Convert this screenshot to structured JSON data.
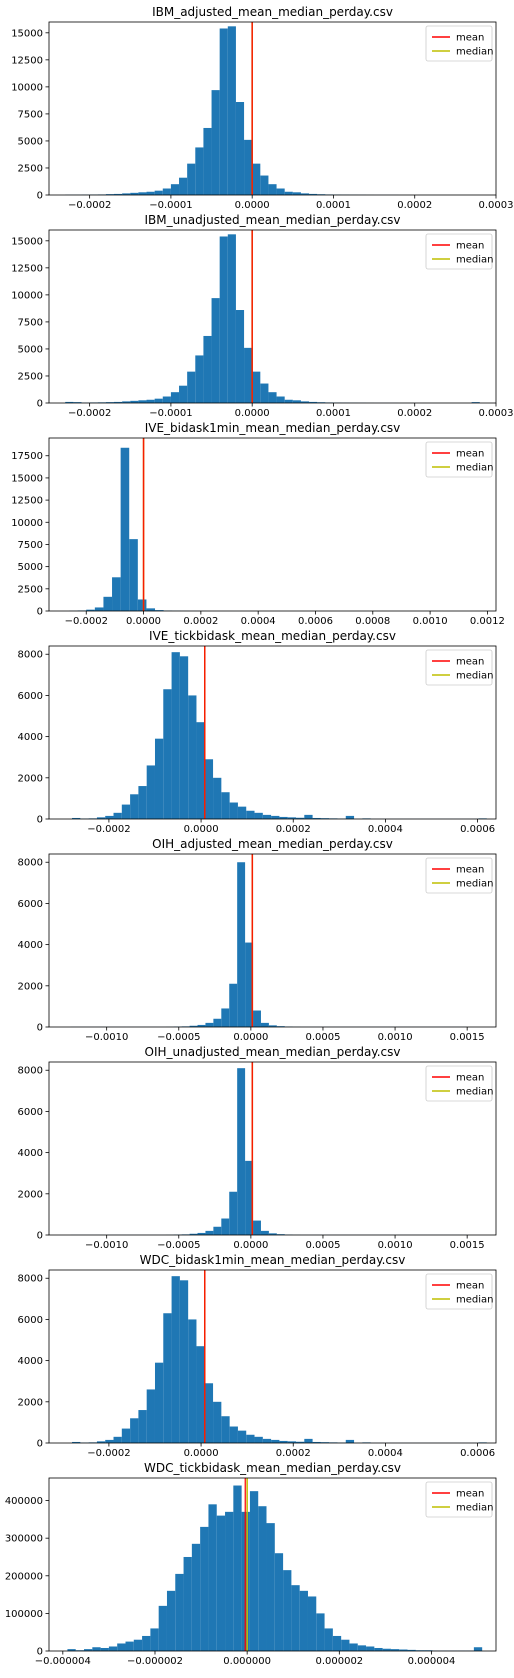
{
  "chart_data": [
    {
      "type": "bar",
      "title": "IBM_adjusted_mean_median_perday.csv",
      "xlim": [
        -0.00025,
        0.0003
      ],
      "ylim": [
        0,
        16000
      ],
      "xticks": [
        -0.0002,
        -0.0001,
        0.0,
        0.0001,
        0.0002,
        0.0003
      ],
      "xtick_labels": [
        "−0.0002",
        "−0.0001",
        "0.0000",
        "0.0001",
        "0.0002",
        "0.0003"
      ],
      "yticks": [
        0,
        2500,
        5000,
        7500,
        10000,
        12500,
        15000
      ],
      "ytick_labels": [
        "0",
        "2500",
        "5000",
        "7500",
        "10000",
        "12500",
        "15000"
      ],
      "bin_edges": [
        -0.00023,
        -0.00022,
        -0.00021,
        -0.0002,
        -0.00019,
        -0.00018,
        -0.00017,
        -0.00016,
        -0.00015,
        -0.00014,
        -0.00013,
        -0.00012,
        -0.00011,
        -0.0001,
        -9e-05,
        -8e-05,
        -7e-05,
        -6e-05,
        -5e-05,
        -4e-05,
        -3e-05,
        -2e-05,
        -1e-05,
        0.0,
        1e-05,
        2e-05,
        3e-05,
        4e-05,
        5e-05,
        6e-05,
        7e-05,
        8e-05,
        9e-05,
        0.0001,
        0.00011,
        0.00012,
        0.00013,
        0.00014,
        0.00015,
        0.00016,
        0.00017,
        0.00018,
        0.00019,
        0.0002,
        0.00021,
        0.00022,
        0.00023,
        0.00024,
        0.00025,
        0.00026,
        0.00027,
        0.00028
      ],
      "counts": [
        20,
        20,
        30,
        40,
        50,
        80,
        100,
        150,
        200,
        250,
        300,
        400,
        600,
        1000,
        1600,
        2900,
        4400,
        6200,
        9700,
        15400,
        15600,
        8600,
        5100,
        2900,
        1800,
        1000,
        600,
        300,
        250,
        150,
        100,
        70,
        50,
        40,
        30,
        25,
        20,
        15,
        10,
        10,
        10,
        5,
        5,
        5,
        5,
        5,
        5,
        5,
        5,
        5,
        5
      ],
      "mean": 0.0,
      "median": 0.0,
      "legend": [
        "mean",
        "median"
      ],
      "legend_placement": "upper right",
      "colors": {
        "bars": "#1f77b4",
        "mean": "#ff0000",
        "median": "#bfbf00"
      }
    },
    {
      "type": "bar",
      "title": "IBM_unadjusted_mean_median_perday.csv",
      "xlim": [
        -0.00025,
        0.0003
      ],
      "ylim": [
        0,
        16000
      ],
      "xticks": [
        -0.0002,
        -0.0001,
        0.0,
        0.0001,
        0.0002,
        0.0003
      ],
      "xtick_labels": [
        "−0.0002",
        "−0.0001",
        "0.0000",
        "0.0001",
        "0.0002",
        "0.0003"
      ],
      "yticks": [
        0,
        2500,
        5000,
        7500,
        10000,
        12500,
        15000
      ],
      "ytick_labels": [
        "0",
        "2500",
        "5000",
        "7500",
        "10000",
        "12500",
        "15000"
      ],
      "bin_edges": [
        -0.00023,
        -0.00022,
        -0.00021,
        -0.0002,
        -0.00019,
        -0.00018,
        -0.00017,
        -0.00016,
        -0.00015,
        -0.00014,
        -0.00013,
        -0.00012,
        -0.00011,
        -0.0001,
        -9e-05,
        -8e-05,
        -7e-05,
        -6e-05,
        -5e-05,
        -4e-05,
        -3e-05,
        -2e-05,
        -1e-05,
        0.0,
        1e-05,
        2e-05,
        3e-05,
        4e-05,
        5e-05,
        6e-05,
        7e-05,
        8e-05,
        9e-05,
        0.0001,
        0.00011,
        0.00012,
        0.00013,
        0.00014,
        0.00015,
        0.00016,
        0.00017,
        0.00018,
        0.00019,
        0.0002,
        0.00021,
        0.00022,
        0.00023,
        0.00024,
        0.00025,
        0.00026,
        0.00027,
        0.00028
      ],
      "counts": [
        100,
        80,
        30,
        50,
        60,
        80,
        100,
        150,
        200,
        250,
        300,
        400,
        600,
        1000,
        1600,
        2900,
        4400,
        6200,
        9700,
        15400,
        15600,
        8600,
        5100,
        2900,
        1800,
        1000,
        600,
        300,
        250,
        150,
        100,
        70,
        50,
        40,
        30,
        25,
        20,
        15,
        10,
        10,
        10,
        5,
        5,
        5,
        5,
        5,
        5,
        5,
        5,
        5,
        80
      ],
      "mean": 0.0,
      "median": 0.0,
      "legend": [
        "mean",
        "median"
      ],
      "legend_placement": "upper right",
      "colors": {
        "bars": "#1f77b4",
        "mean": "#ff0000",
        "median": "#bfbf00"
      }
    },
    {
      "type": "bar",
      "title": "IVE_bidask1min_mean_median_perday.csv",
      "xlim": [
        -0.00033,
        0.00123
      ],
      "ylim": [
        0,
        19500
      ],
      "xticks": [
        -0.0002,
        0.0,
        0.0002,
        0.0004,
        0.0006,
        0.0008,
        0.001,
        0.0012
      ],
      "xtick_labels": [
        "−0.0002",
        "0.0000",
        "0.0002",
        "0.0004",
        "0.0006",
        "0.0008",
        "0.0010",
        "0.0012"
      ],
      "yticks": [
        0,
        2500,
        5000,
        7500,
        10000,
        12500,
        15000,
        17500
      ],
      "ytick_labels": [
        "0",
        "2500",
        "5000",
        "7500",
        "10000",
        "12500",
        "15000",
        "17500"
      ],
      "bin_edges": [
        -0.00026,
        -0.00023,
        -0.0002,
        -0.00017,
        -0.00014,
        -0.00011,
        -8e-05,
        -5e-05,
        -2e-05,
        1e-05,
        4e-05,
        7e-05,
        0.0001,
        0.00013,
        0.00016,
        0.00019,
        0.00022,
        0.00025,
        0.00028,
        0.00031
      ],
      "counts": [
        20,
        60,
        150,
        400,
        1600,
        3800,
        18400,
        8100,
        1300,
        300,
        100,
        50,
        30,
        20,
        10,
        10,
        5,
        5,
        5
      ],
      "mean": 0.0,
      "median": 0.0,
      "legend": [
        "mean",
        "median"
      ],
      "legend_placement": "upper right",
      "colors": {
        "bars": "#1f77b4",
        "mean": "#ff0000",
        "median": "#bfbf00"
      }
    },
    {
      "type": "bar",
      "title": "IVE_tickbidask_mean_median_perday.csv",
      "xlim": [
        -0.00033,
        0.00064
      ],
      "ylim": [
        0,
        8400
      ],
      "xticks": [
        -0.0002,
        0.0,
        0.0002,
        0.0004,
        0.0006
      ],
      "xtick_labels": [
        "−0.0002",
        "0.0000",
        "0.0002",
        "0.0004",
        "0.0006"
      ],
      "yticks": [
        0,
        2000,
        4000,
        6000,
        8000
      ],
      "ytick_labels": [
        "0",
        "2000",
        "4000",
        "6000",
        "8000"
      ],
      "bin_edges": [
        -0.00028,
        -0.000262,
        -0.000244,
        -0.000226,
        -0.000208,
        -0.00019,
        -0.000172,
        -0.000154,
        -0.000136,
        -0.000118,
        -0.0001,
        -8.2e-05,
        -6.4e-05,
        -4.6e-05,
        -2.8e-05,
        -1e-05,
        8e-06,
        2.6e-05,
        4.4e-05,
        6.2e-05,
        8e-05,
        9.8e-05,
        0.000116,
        0.000134,
        0.000152,
        0.00017,
        0.000188,
        0.000206,
        0.000224,
        0.000242,
        0.00026,
        0.000278,
        0.000296,
        0.000314,
        0.000332,
        0.00035,
        0.000368,
        0.000386,
        0.000404,
        0.000422,
        0.00044,
        0.000458,
        0.000476,
        0.000494,
        0.000512,
        0.00053,
        0.000548,
        0.000566,
        0.000584,
        0.000602,
        0.00062
      ],
      "counts": [
        50,
        20,
        30,
        80,
        150,
        300,
        700,
        1200,
        1600,
        2600,
        3900,
        6300,
        8100,
        7900,
        6000,
        4700,
        2900,
        2000,
        1300,
        800,
        600,
        400,
        300,
        200,
        150,
        100,
        80,
        60,
        200,
        50,
        40,
        30,
        20,
        150,
        10,
        30,
        5,
        5,
        5,
        5,
        5,
        5,
        5,
        5,
        5,
        5,
        5,
        5,
        5,
        30
      ],
      "mean": 8e-06,
      "median": 8e-06,
      "legend": [
        "mean",
        "median"
      ],
      "legend_placement": "upper right",
      "colors": {
        "bars": "#1f77b4",
        "mean": "#ff0000",
        "median": "#bfbf00"
      }
    },
    {
      "type": "bar",
      "title": "OIH_adjusted_mean_median_perday.csv",
      "xlim": [
        -0.0014,
        0.0017
      ],
      "ylim": [
        0,
        8400
      ],
      "xticks": [
        -0.001,
        -0.0005,
        0.0,
        0.0005,
        0.001,
        0.0015
      ],
      "xtick_labels": [
        "−0.0010",
        "−0.0005",
        "0.0000",
        "0.0005",
        "0.0010",
        "0.0015"
      ],
      "yticks": [
        0,
        2000,
        4000,
        6000,
        8000
      ],
      "ytick_labels": [
        "0",
        "2000",
        "4000",
        "6000",
        "8000"
      ],
      "bin_edges": [
        -0.00125,
        -0.001195,
        -0.00114,
        -0.001085,
        -0.00103,
        -0.000975,
        -0.00092,
        -0.000865,
        -0.00081,
        -0.000755,
        -0.0007,
        -0.000645,
        -0.00059,
        -0.000535,
        -0.00048,
        -0.000425,
        -0.00037,
        -0.000315,
        -0.00026,
        -0.000205,
        -0.00015,
        -9.5e-05,
        -4e-05,
        1.5e-05,
        7e-05,
        0.000125,
        0.00018,
        0.000235,
        0.00029,
        0.000345,
        0.0004,
        0.000455,
        0.00051,
        0.000565,
        0.00062,
        0.000675,
        0.00073,
        0.000785,
        0.00084,
        0.000895,
        0.00095,
        0.001005,
        0.00106,
        0.001115,
        0.00117,
        0.001225,
        0.00128,
        0.001335,
        0.00139,
        0.001445,
        0.0015
      ],
      "counts": [
        5,
        5,
        5,
        5,
        5,
        5,
        5,
        5,
        5,
        5,
        5,
        5,
        10,
        20,
        30,
        60,
        100,
        200,
        400,
        900,
        2100,
        8000,
        4100,
        800,
        200,
        80,
        40,
        20,
        10,
        5,
        5,
        5,
        5,
        5,
        5,
        5,
        5,
        5,
        5,
        5,
        5,
        5,
        5,
        5,
        5,
        5,
        5,
        5,
        5,
        5
      ],
      "mean": 1e-05,
      "median": 1e-05,
      "legend": [
        "mean",
        "median"
      ],
      "legend_placement": "upper right",
      "colors": {
        "bars": "#1f77b4",
        "mean": "#ff0000",
        "median": "#bfbf00"
      }
    },
    {
      "type": "bar",
      "title": "OIH_unadjusted_mean_median_perday.csv",
      "xlim": [
        -0.0014,
        0.0017
      ],
      "ylim": [
        0,
        8400
      ],
      "xticks": [
        -0.001,
        -0.0005,
        0.0,
        0.0005,
        0.001,
        0.0015
      ],
      "xtick_labels": [
        "−0.0010",
        "−0.0005",
        "0.0000",
        "0.0005",
        "0.0010",
        "0.0015"
      ],
      "yticks": [
        0,
        2000,
        4000,
        6000,
        8000
      ],
      "ytick_labels": [
        "0",
        "2000",
        "4000",
        "6000",
        "8000"
      ],
      "bin_edges": [
        -0.00125,
        -0.001195,
        -0.00114,
        -0.001085,
        -0.00103,
        -0.000975,
        -0.00092,
        -0.000865,
        -0.00081,
        -0.000755,
        -0.0007,
        -0.000645,
        -0.00059,
        -0.000535,
        -0.00048,
        -0.000425,
        -0.00037,
        -0.000315,
        -0.00026,
        -0.000205,
        -0.00015,
        -9.5e-05,
        -4e-05,
        1.5e-05,
        7e-05,
        0.000125,
        0.00018,
        0.000235,
        0.00029,
        0.000345,
        0.0004,
        0.000455,
        0.00051,
        0.000565,
        0.00062,
        0.000675,
        0.00073,
        0.000785,
        0.00084,
        0.000895,
        0.00095,
        0.001005,
        0.00106,
        0.001115,
        0.00117,
        0.001225,
        0.00128,
        0.001335,
        0.00139,
        0.001445,
        0.0015
      ],
      "counts": [
        5,
        5,
        5,
        5,
        5,
        5,
        5,
        5,
        5,
        5,
        5,
        5,
        10,
        20,
        30,
        60,
        100,
        200,
        400,
        800,
        2100,
        8100,
        3600,
        700,
        200,
        80,
        40,
        20,
        10,
        5,
        5,
        5,
        5,
        5,
        5,
        5,
        5,
        5,
        5,
        5,
        5,
        5,
        5,
        5,
        5,
        5,
        5,
        5,
        5,
        5
      ],
      "mean": 1e-05,
      "median": 1e-05,
      "legend": [
        "mean",
        "median"
      ],
      "legend_placement": "upper right",
      "colors": {
        "bars": "#1f77b4",
        "mean": "#ff0000",
        "median": "#bfbf00"
      }
    },
    {
      "type": "bar",
      "title": "WDC_bidask1min_mean_median_perday.csv",
      "xlim": [
        -0.00033,
        0.00064
      ],
      "ylim": [
        0,
        8400
      ],
      "xticks": [
        -0.0002,
        0.0,
        0.0002,
        0.0004,
        0.0006
      ],
      "xtick_labels": [
        "−0.0002",
        "0.0000",
        "0.0002",
        "0.0004",
        "0.0006"
      ],
      "yticks": [
        0,
        2000,
        4000,
        6000,
        8000
      ],
      "ytick_labels": [
        "0",
        "2000",
        "4000",
        "6000",
        "8000"
      ],
      "bin_edges": [
        -0.00028,
        -0.000262,
        -0.000244,
        -0.000226,
        -0.000208,
        -0.00019,
        -0.000172,
        -0.000154,
        -0.000136,
        -0.000118,
        -0.0001,
        -8.2e-05,
        -6.4e-05,
        -4.6e-05,
        -2.8e-05,
        -1e-05,
        8e-06,
        2.6e-05,
        4.4e-05,
        6.2e-05,
        8e-05,
        9.8e-05,
        0.000116,
        0.000134,
        0.000152,
        0.00017,
        0.000188,
        0.000206,
        0.000224,
        0.000242,
        0.00026,
        0.000278,
        0.000296,
        0.000314,
        0.000332,
        0.00035,
        0.000368,
        0.000386,
        0.000404,
        0.000422,
        0.00044,
        0.000458,
        0.000476,
        0.000494,
        0.000512,
        0.00053,
        0.000548,
        0.000566,
        0.000584,
        0.000602,
        0.00062
      ],
      "counts": [
        50,
        20,
        30,
        80,
        150,
        300,
        700,
        1200,
        1600,
        2600,
        3900,
        6300,
        8100,
        7900,
        6000,
        4700,
        2900,
        2000,
        1300,
        800,
        600,
        400,
        300,
        200,
        150,
        100,
        80,
        60,
        200,
        50,
        40,
        30,
        20,
        150,
        10,
        30,
        5,
        5,
        5,
        5,
        5,
        5,
        5,
        5,
        5,
        5,
        5,
        5,
        5,
        30
      ],
      "mean": 8e-06,
      "median": 8e-06,
      "legend": [
        "mean",
        "median"
      ],
      "legend_placement": "upper right",
      "colors": {
        "bars": "#1f77b4",
        "mean": "#ff0000",
        "median": "#bfbf00"
      }
    },
    {
      "type": "bar",
      "title": "WDC_tickbidask_mean_median_perday.csv",
      "xlim": [
        -4.3e-06,
        5.4e-06
      ],
      "ylim": [
        0,
        460000
      ],
      "xticks": [
        -4e-06,
        -2e-06,
        0.0,
        2e-06,
        4e-06
      ],
      "xtick_labels": [
        "−0.000004",
        "−0.000002",
        "0.000000",
        "0.000002",
        "0.000004"
      ],
      "yticks": [
        0,
        100000,
        200000,
        300000,
        400000
      ],
      "ytick_labels": [
        "0",
        "100000",
        "200000",
        "300000",
        "400000"
      ],
      "bin_edges": [
        -3.9e-06,
        -3.72e-06,
        -3.54e-06,
        -3.36e-06,
        -3.18e-06,
        -3e-06,
        -2.82e-06,
        -2.64e-06,
        -2.46e-06,
        -2.28e-06,
        -2.1e-06,
        -1.92e-06,
        -1.74e-06,
        -1.56e-06,
        -1.38e-06,
        -1.2e-06,
        -1.02e-06,
        -8.4e-07,
        -6.6e-07,
        -4.8e-07,
        -3e-07,
        -1.2e-07,
        6e-08,
        2.4e-07,
        4.2e-07,
        6e-07,
        7.8e-07,
        9.6e-07,
        1.14e-06,
        1.32e-06,
        1.5e-06,
        1.68e-06,
        1.86e-06,
        2.04e-06,
        2.22e-06,
        2.4e-06,
        2.58e-06,
        2.76e-06,
        2.94e-06,
        3.12e-06,
        3.3e-06,
        3.48e-06,
        3.66e-06,
        3.84e-06,
        4.02e-06,
        4.2e-06,
        4.38e-06,
        4.56e-06,
        4.74e-06,
        4.92e-06,
        5.1e-06
      ],
      "counts": [
        5000,
        2000,
        5000,
        10000,
        8000,
        12000,
        20000,
        25000,
        30000,
        40000,
        60000,
        120000,
        160000,
        205000,
        250000,
        285000,
        330000,
        390000,
        360000,
        370000,
        440000,
        370000,
        425000,
        385000,
        340000,
        260000,
        215000,
        175000,
        160000,
        145000,
        100000,
        60000,
        40000,
        30000,
        20000,
        15000,
        12000,
        8000,
        6000,
        5000,
        4000,
        3000,
        2000,
        2000,
        1000,
        1000,
        1000,
        1000,
        1000,
        10000
      ],
      "mean": -4e-08,
      "median": 0.0,
      "legend": [
        "mean",
        "median"
      ],
      "legend_placement": "upper right",
      "colors": {
        "bars": "#1f77b4",
        "mean": "#ff0000",
        "median": "#bfbf00"
      }
    }
  ]
}
